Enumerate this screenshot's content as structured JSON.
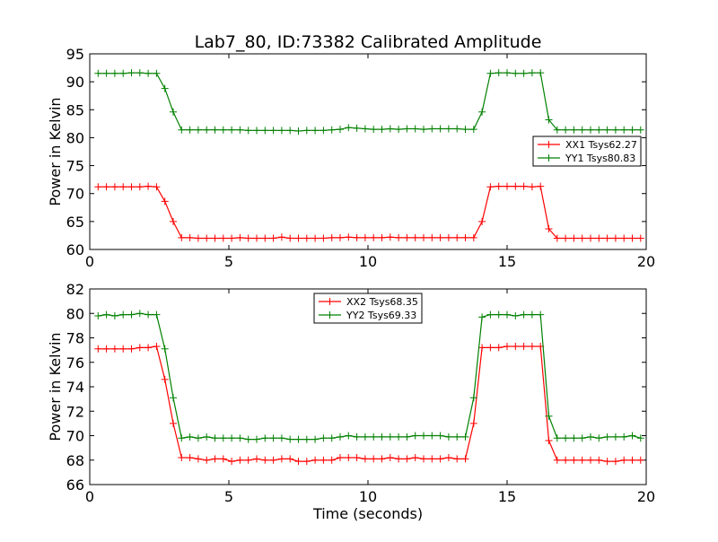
{
  "chart_data": [
    {
      "type": "line",
      "title": "Lab7_80, ID:73382 Calibrated Amplitude",
      "xlabel": "",
      "ylabel": "Power in Kelvin",
      "xlim": [
        0,
        20
      ],
      "ylim": [
        60,
        95
      ],
      "xticks": [
        0,
        5,
        10,
        15,
        20
      ],
      "yticks": [
        60,
        65,
        70,
        75,
        80,
        85,
        90,
        95
      ],
      "grid": false,
      "legend_position": "center-right",
      "x": [
        0.3,
        0.6,
        0.9,
        1.2,
        1.5,
        1.8,
        2.1,
        2.4,
        2.7,
        3.0,
        3.3,
        3.6,
        3.9,
        4.2,
        4.5,
        4.8,
        5.1,
        5.4,
        5.7,
        6.0,
        6.3,
        6.6,
        6.9,
        7.2,
        7.5,
        7.8,
        8.1,
        8.4,
        8.7,
        9.0,
        9.3,
        9.6,
        9.9,
        10.2,
        10.5,
        10.8,
        11.1,
        11.4,
        11.7,
        12.0,
        12.3,
        12.6,
        12.9,
        13.2,
        13.5,
        13.8,
        14.1,
        14.4,
        14.7,
        15.0,
        15.3,
        15.6,
        15.9,
        16.2,
        16.5,
        16.8,
        17.1,
        17.4,
        17.7,
        18.0,
        18.3,
        18.6,
        18.9,
        19.2,
        19.5,
        19.8
      ],
      "series": [
        {
          "name": "XX1 Tsys62.27",
          "color": "#ff0000",
          "values": [
            71.2,
            71.2,
            71.2,
            71.2,
            71.2,
            71.2,
            71.3,
            71.2,
            68.6,
            65.0,
            62.1,
            62.1,
            62.0,
            62.0,
            62.0,
            62.0,
            62.0,
            62.1,
            62.0,
            62.0,
            62.0,
            62.0,
            62.2,
            62.0,
            62.0,
            62.0,
            62.0,
            62.0,
            62.1,
            62.1,
            62.2,
            62.1,
            62.1,
            62.1,
            62.1,
            62.2,
            62.1,
            62.1,
            62.1,
            62.1,
            62.1,
            62.1,
            62.1,
            62.1,
            62.1,
            62.1,
            65.0,
            71.2,
            71.3,
            71.3,
            71.3,
            71.3,
            71.2,
            71.3,
            63.7,
            62.0,
            62.0,
            62.0,
            62.0,
            62.0,
            62.0,
            62.0,
            62.0,
            62.0,
            62.0,
            62.0
          ]
        },
        {
          "name": "YY1 Tsys80.83",
          "color": "#008000",
          "values": [
            91.5,
            91.5,
            91.5,
            91.5,
            91.6,
            91.6,
            91.5,
            91.5,
            88.8,
            84.6,
            81.4,
            81.4,
            81.4,
            81.4,
            81.4,
            81.4,
            81.4,
            81.4,
            81.3,
            81.3,
            81.3,
            81.3,
            81.3,
            81.3,
            81.2,
            81.3,
            81.3,
            81.3,
            81.4,
            81.5,
            81.8,
            81.7,
            81.6,
            81.5,
            81.5,
            81.6,
            81.5,
            81.6,
            81.6,
            81.5,
            81.6,
            81.6,
            81.6,
            81.6,
            81.5,
            81.5,
            84.6,
            91.5,
            91.6,
            91.6,
            91.5,
            91.5,
            91.6,
            91.6,
            83.2,
            81.4,
            81.4,
            81.4,
            81.4,
            81.4,
            81.4,
            81.4,
            81.4,
            81.4,
            81.4,
            81.4
          ]
        }
      ]
    },
    {
      "type": "line",
      "title": "",
      "xlabel": "Time (seconds)",
      "ylabel": "Power in Kelvin",
      "xlim": [
        0,
        20
      ],
      "ylim": [
        66,
        82
      ],
      "xticks": [
        0,
        5,
        10,
        15,
        20
      ],
      "yticks": [
        66,
        68,
        70,
        72,
        74,
        76,
        78,
        80,
        82
      ],
      "grid": false,
      "legend_position": "upper-center",
      "x": [
        0.3,
        0.6,
        0.9,
        1.2,
        1.5,
        1.8,
        2.1,
        2.4,
        2.7,
        3.0,
        3.3,
        3.6,
        3.9,
        4.2,
        4.5,
        4.8,
        5.1,
        5.4,
        5.7,
        6.0,
        6.3,
        6.6,
        6.9,
        7.2,
        7.5,
        7.8,
        8.1,
        8.4,
        8.7,
        9.0,
        9.3,
        9.6,
        9.9,
        10.2,
        10.5,
        10.8,
        11.1,
        11.4,
        11.7,
        12.0,
        12.3,
        12.6,
        12.9,
        13.2,
        13.5,
        13.8,
        14.1,
        14.4,
        14.7,
        15.0,
        15.3,
        15.6,
        15.9,
        16.2,
        16.5,
        16.8,
        17.1,
        17.4,
        17.7,
        18.0,
        18.3,
        18.6,
        18.9,
        19.2,
        19.5,
        19.8
      ],
      "series": [
        {
          "name": "XX2 Tsys68.35",
          "color": "#ff0000",
          "values": [
            77.1,
            77.1,
            77.1,
            77.1,
            77.1,
            77.2,
            77.2,
            77.3,
            74.6,
            71.0,
            68.2,
            68.2,
            68.1,
            68.0,
            68.1,
            68.1,
            67.9,
            68.0,
            68.0,
            68.1,
            68.0,
            68.0,
            68.1,
            68.1,
            67.9,
            67.9,
            68.0,
            68.0,
            68.0,
            68.2,
            68.2,
            68.2,
            68.1,
            68.1,
            68.1,
            68.2,
            68.1,
            68.1,
            68.2,
            68.1,
            68.1,
            68.1,
            68.2,
            68.1,
            68.1,
            71.0,
            77.2,
            77.2,
            77.2,
            77.3,
            77.3,
            77.3,
            77.3,
            77.3,
            69.6,
            68.0,
            68.0,
            68.0,
            68.0,
            68.0,
            68.0,
            67.9,
            67.9,
            68.0,
            68.0,
            68.0
          ]
        },
        {
          "name": "YY2 Tsys69.33",
          "color": "#008000",
          "values": [
            79.8,
            79.9,
            79.8,
            79.9,
            79.9,
            80.0,
            79.9,
            79.9,
            77.1,
            73.1,
            69.8,
            69.9,
            69.8,
            69.9,
            69.8,
            69.8,
            69.8,
            69.8,
            69.7,
            69.7,
            69.8,
            69.8,
            69.8,
            69.7,
            69.7,
            69.7,
            69.7,
            69.8,
            69.8,
            69.9,
            70.0,
            69.9,
            69.9,
            69.9,
            69.9,
            69.9,
            69.9,
            69.9,
            70.0,
            70.0,
            70.0,
            70.0,
            69.9,
            69.9,
            69.9,
            73.1,
            79.7,
            79.9,
            79.9,
            79.9,
            79.8,
            79.9,
            79.9,
            79.9,
            71.6,
            69.8,
            69.8,
            69.8,
            69.8,
            69.9,
            69.8,
            69.9,
            69.9,
            69.9,
            70.0,
            69.8
          ]
        }
      ]
    }
  ]
}
